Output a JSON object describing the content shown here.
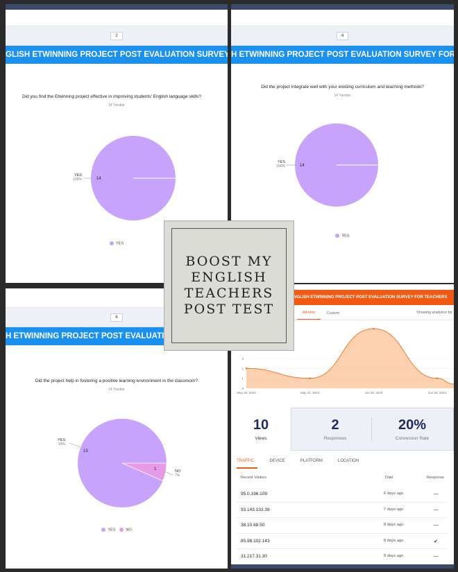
{
  "banner_text": "ENGLISH ETWINNING PROJECT POST EVALUATION SURVEY FOR TEACHERS",
  "panel1": {
    "page": "2",
    "banner": "GLISH ETWINNING PROJECT POST EVALUATION SURVEY FOR",
    "question": "Did you find the Etwinning project effective in improving students' English language skills?",
    "answers": "14 Yanıtlar",
    "pie_label": "YES",
    "pie_pct": "100%",
    "pie_count": "14",
    "legend": [
      "YES"
    ]
  },
  "panel2": {
    "page": "4",
    "banner": "H ETWINNING PROJECT POST EVALUATION SURVEY FOR",
    "question": "Did the project integrate well with your existing curriculum and teaching methods?",
    "answers": "14 Yanıtlar",
    "pie_label": "YES",
    "pie_pct": "100%",
    "pie_count": "14",
    "legend": [
      "YES"
    ]
  },
  "panel3": {
    "page": "6",
    "banner": "H ETWINNING PROJECT POST EVALUATION SURVEY FOR",
    "question": "Did the project help in fostering a positive learning environment in the classroom?",
    "answers": "14 Yanıtlar",
    "yes_label": "YES",
    "yes_pct": "93%",
    "yes_count": "13",
    "no_label": "NO",
    "no_pct": "7%",
    "no_count": "1",
    "legend": [
      "YES",
      "NO"
    ]
  },
  "center": {
    "lines": [
      "BOOST MY",
      "ENGLISH",
      "TEACHERS",
      "POST TEST"
    ]
  },
  "panel4": {
    "banner": "T MY ENGLISH ETWINNING PROJECT POST EVALUATION SURVEY FOR TEACHERS",
    "tabs": [
      "All-time",
      "Custom"
    ],
    "showing": "Showing analytics for",
    "stats": [
      {
        "value": "10",
        "label": "Views"
      },
      {
        "value": "2",
        "label": "Responses"
      },
      {
        "value": "20%",
        "label": "Conversion Rate"
      }
    ],
    "traffic_tabs": [
      "TRAFFIC",
      "DEVICE",
      "PLATFORM",
      "LOCATION"
    ],
    "headers": [
      "Recent Visitors",
      "Date",
      "Response"
    ],
    "rows": [
      {
        "ip": "95.0.196.109",
        "date": "6 days ago",
        "response": "—"
      },
      {
        "ip": "93.143.133.39",
        "date": "7 days ago",
        "response": "—"
      },
      {
        "ip": "38.10.68.50",
        "date": "8 days ago",
        "response": "—"
      },
      {
        "ip": "85.98.102.143",
        "date": "8 days ago",
        "response": "✔"
      },
      {
        "ip": "31.217.31.30",
        "date": "8 days ago",
        "response": "—"
      }
    ]
  },
  "colors": {
    "pie": "#c7a3fb",
    "pie_no": "#e69be6",
    "banner_blue": "#1a90ef",
    "banner_orange": "#f05a12",
    "area": "#fbc9a2",
    "line": "#f07b2e",
    "stat_number": "#1f2a5c"
  },
  "chart_data": {
    "type": "area",
    "x": [
      "May 30, 2023",
      "May 31, 2023",
      "Jun 05, 2023",
      "Jun 06, 2023"
    ],
    "y_ticks": [
      "0",
      "1",
      "2",
      "3"
    ],
    "points": [
      {
        "x": "May 30, 2023",
        "y": 2
      },
      {
        "x": "May 31, 2023",
        "y": 1
      },
      {
        "x": "Jun 05, 2023",
        "y": 6
      },
      {
        "x": "Jun 06, 2023",
        "y": 1
      }
    ]
  }
}
